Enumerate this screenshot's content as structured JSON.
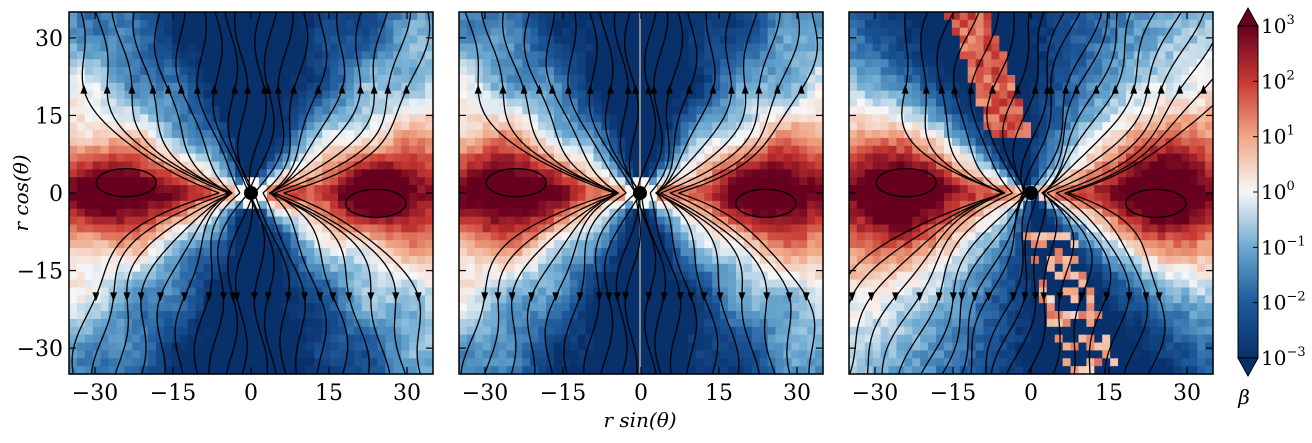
{
  "chart_data": {
    "type": "heatmap",
    "title": "",
    "xlabel": "r sin(θ)",
    "ylabel": "r cos(θ)",
    "xlim": [
      -35,
      35
    ],
    "ylim": [
      -35,
      35
    ],
    "xticks": [
      -30,
      -15,
      0,
      15,
      30
    ],
    "yticks": [
      -30,
      -15,
      0,
      15,
      30
    ],
    "xtick_labels": [
      "−30",
      "−15",
      "0",
      "15",
      "30"
    ],
    "ytick_labels": [
      "−30",
      "−15",
      "0",
      "15",
      "30"
    ],
    "scale": "log",
    "colormap": "RdBu_r",
    "colors": {
      "low": "#08306b",
      "mid": "#f7f7f7",
      "high": "#67001f"
    },
    "colorbar": {
      "label": "β",
      "range": [
        0.001,
        1000
      ],
      "tick_base": "10",
      "tick_exponents": [
        "3",
        "2",
        "1",
        "0",
        "−1",
        "−2",
        "−3"
      ],
      "extend": "both"
    },
    "panels": [
      {
        "name": "panel-1",
        "show_ylabel": true,
        "show_xlabel": false
      },
      {
        "name": "panel-2",
        "show_ylabel": false,
        "show_xlabel": true
      },
      {
        "name": "panel-3",
        "show_ylabel": false,
        "show_xlabel": false
      }
    ],
    "overlay": "magnetic field streamlines with arrows; central black dot at origin"
  }
}
